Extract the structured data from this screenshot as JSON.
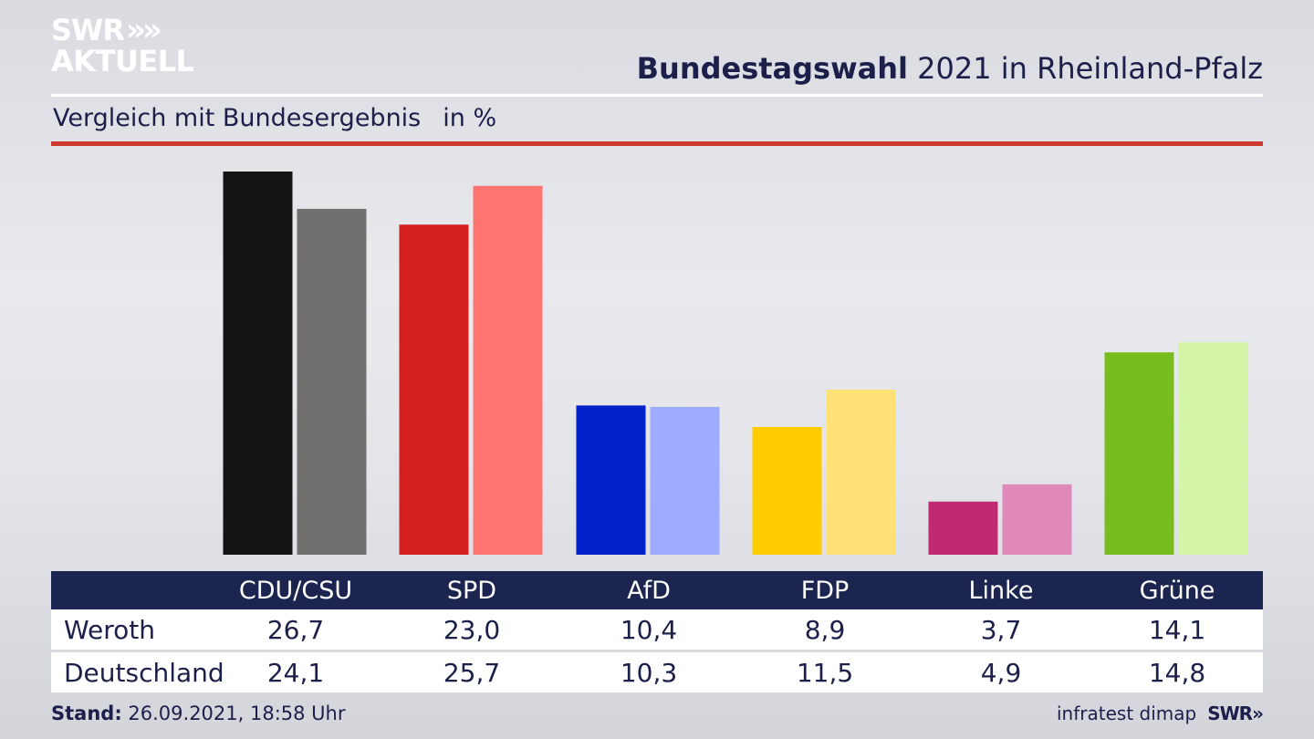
{
  "brand": {
    "logo_line1": "SWR",
    "logo_line2": "AKTUELL",
    "logo_chevrons": "»"
  },
  "header": {
    "title_bold": "Bundestagswahl",
    "title_rest": " 2021 in Rheinland-Pfalz"
  },
  "subtitle": {
    "text": "Vergleich mit Bundesergebnis",
    "unit": "in %"
  },
  "table": {
    "rows": [
      {
        "label": "Weroth",
        "values": [
          "26,7",
          "23,0",
          "10,4",
          "8,9",
          "3,7",
          "14,1"
        ]
      },
      {
        "label": "Deutschland",
        "values": [
          "24,1",
          "25,7",
          "10,3",
          "11,5",
          "4,9",
          "14,8"
        ]
      }
    ]
  },
  "footer": {
    "stand_label": "Stand:",
    "stand_value": " 26.09.2021, 18:58 Uhr",
    "source": "infratest dimap",
    "source_logo": "SWR»"
  },
  "colors": {
    "accent_red": "#cf3a2f",
    "navy": "#1b2550"
  },
  "chart_data": {
    "type": "bar",
    "categories": [
      "CDU/CSU",
      "SPD",
      "AfD",
      "FDP",
      "Linke",
      "Grüne"
    ],
    "series": [
      {
        "name": "Weroth",
        "values": [
          26.7,
          23.0,
          10.4,
          8.9,
          3.7,
          14.1
        ],
        "colors": [
          "#141414",
          "#d41f1f",
          "#0020c8",
          "#ffcc00",
          "#c02a73",
          "#78bd1e"
        ]
      },
      {
        "name": "Deutschland",
        "values": [
          24.1,
          25.7,
          10.3,
          11.5,
          4.9,
          14.8
        ],
        "colors": [
          "#706f6d",
          "#ff7470",
          "#9fabff",
          "#ffe175",
          "#e088b8",
          "#d4f4a8"
        ]
      }
    ],
    "grid": false,
    "legend": "none"
  }
}
